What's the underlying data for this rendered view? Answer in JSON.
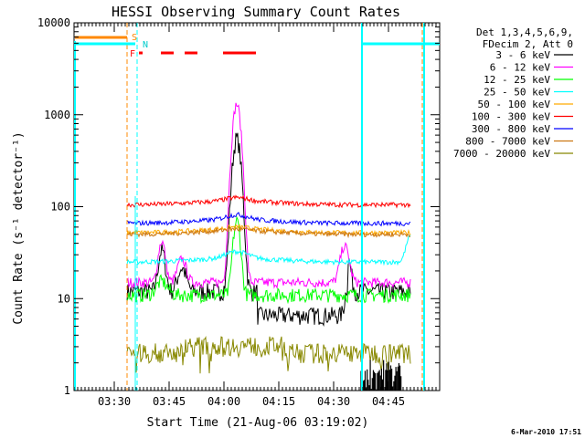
{
  "chart_data": {
    "type": "line",
    "title": "HESSI Observing Summary Count Rates",
    "xlabel": "Start Time (21-Aug-06 03:19:02)",
    "ylabel": "Count Rate (s⁻¹ detector⁻¹)",
    "yscale": "log",
    "ylim": [
      1,
      10000
    ],
    "xlim_minutes_after_0319": [
      0,
      100
    ],
    "x_tick_labels": [
      "03:30",
      "03:45",
      "04:00",
      "04:15",
      "04:30",
      "04:45"
    ],
    "x_tick_minutes": [
      11,
      26,
      41,
      56,
      71,
      86
    ],
    "y_tick_labels": [
      "1",
      "10",
      "100",
      "1000",
      "10000"
    ],
    "y_tick_values": [
      1,
      10,
      100,
      1000,
      10000
    ],
    "legend_header": [
      "Det 1,3,4,5,6,9,",
      "FDecim 2, Att 0"
    ],
    "legend_placement": "right",
    "footer": "6-Mar-2010 17:51",
    "flags": {
      "S": "S",
      "N": "N",
      "F": "F"
    },
    "series": [
      {
        "name": "3 - 6 keV",
        "color": "#000000",
        "baseline": 12,
        "peak": 550
      },
      {
        "name": "6 - 12 keV",
        "color": "#ff00ff",
        "baseline": 15,
        "peak": 1300
      },
      {
        "name": "12 - 25 keV",
        "color": "#00ff00",
        "baseline": 11,
        "peak": 70
      },
      {
        "name": "25 - 50 keV",
        "color": "#00ffff",
        "baseline": 25,
        "peak": 30
      },
      {
        "name": "50 - 100 keV",
        "color": "#ffaa00",
        "baseline": 52,
        "peak": 55
      },
      {
        "name": "100 - 300 keV",
        "color": "#ff0000",
        "baseline": 105,
        "peak": 115
      },
      {
        "name": "300 - 800 keV",
        "color": "#0000ff",
        "baseline": 66,
        "peak": 75
      },
      {
        "name": "800 - 7000 keV",
        "color": "#cc7711",
        "baseline": 50,
        "peak": 52
      },
      {
        "name": "7000 - 20000 keV",
        "color": "#888800",
        "baseline": 2.6,
        "peak": 3
      }
    ]
  }
}
